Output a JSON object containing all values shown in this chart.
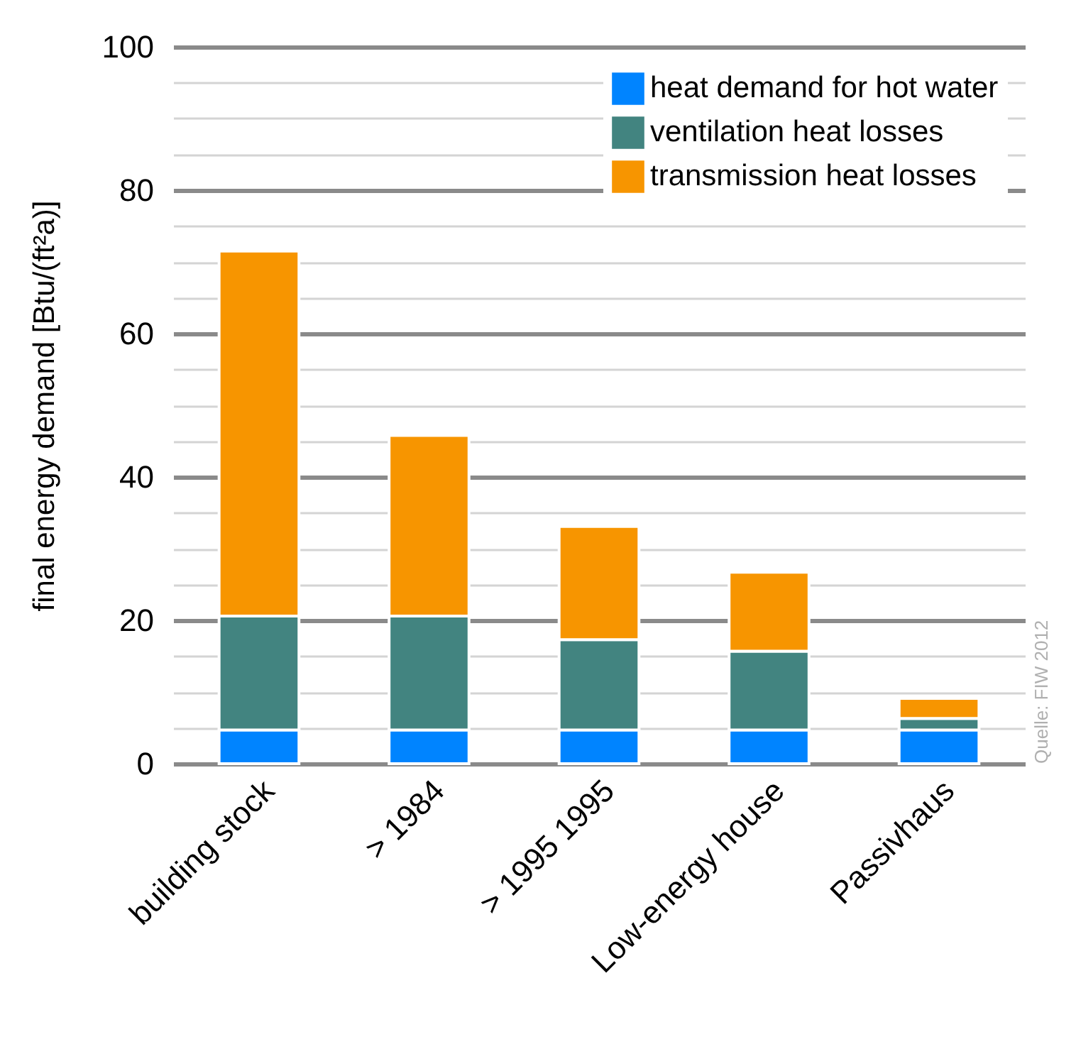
{
  "chart_data": {
    "type": "bar",
    "stacked": true,
    "categories": [
      "building stock",
      "> 1984",
      "> 1995 1995",
      "Low-energy house",
      "Passivhaus"
    ],
    "ylabel": "final energy demand  [Btu/(ft²a)]",
    "series": [
      {
        "name": "heat demand for hot water",
        "color": "#0084ff",
        "values": [
          4.7,
          4.7,
          4.7,
          4.7,
          4.7
        ]
      },
      {
        "name": "ventilation heat losses",
        "color": "#428480",
        "values": [
          15.9,
          15.9,
          12.6,
          11.0,
          1.6
        ]
      },
      {
        "name": "transmission heat losses",
        "color": "#f79500",
        "values": [
          50.9,
          25.2,
          15.8,
          11.0,
          2.8
        ]
      }
    ],
    "ylim": [
      0,
      100
    ],
    "yticks": [
      0,
      {
        "value": 5,
        "label": null
      },
      {
        "value": 10,
        "label": null
      },
      {
        "value": 15,
        "label": null
      },
      20,
      {
        "value": 25,
        "label": null
      },
      {
        "value": 30,
        "label": null
      },
      {
        "value": 35,
        "label": null
      },
      40,
      {
        "value": 45,
        "label": null
      },
      {
        "value": 50,
        "label": null
      },
      {
        "value": 55,
        "label": null
      },
      60,
      {
        "value": 65,
        "label": null
      },
      {
        "value": 70,
        "label": null
      },
      {
        "value": 75,
        "label": null
      },
      80,
      {
        "value": 85,
        "label": null
      },
      {
        "value": 90,
        "label": null
      },
      {
        "value": 95,
        "label": null
      },
      100
    ],
    "grid": "y",
    "legend": "top right",
    "annotations": [
      "Quelle: FIW 2012"
    ]
  }
}
